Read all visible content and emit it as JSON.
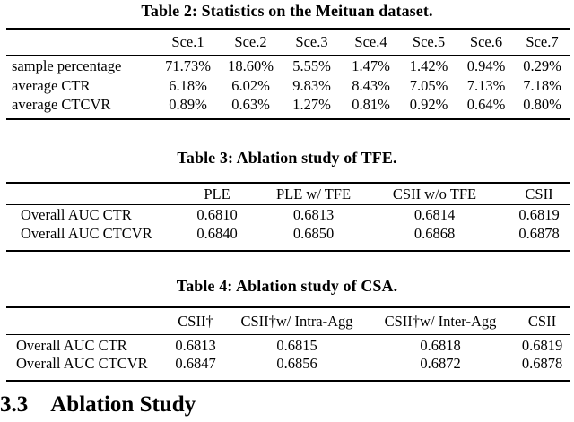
{
  "colors": {
    "text": "#000000",
    "background": "#ffffff",
    "rule": "#000000"
  },
  "section_heading": {
    "number": "3.3",
    "title": "Ablation Study"
  },
  "tables": [
    {
      "caption": "Table 2: Statistics on the Meituan dataset.",
      "columns": [
        "",
        "Sce.1",
        "Sce.2",
        "Sce.3",
        "Sce.4",
        "Sce.5",
        "Sce.6",
        "Sce.7"
      ],
      "rows": [
        {
          "label": "sample percentage",
          "values": [
            "71.73%",
            "18.60%",
            "5.55%",
            "1.47%",
            "1.42%",
            "0.94%",
            "0.29%"
          ]
        },
        {
          "label": "average CTR",
          "values": [
            "6.18%",
            "6.02%",
            "9.83%",
            "8.43%",
            "7.05%",
            "7.13%",
            "7.18%"
          ]
        },
        {
          "label": "average CTCVR",
          "values": [
            "0.89%",
            "0.63%",
            "1.27%",
            "0.81%",
            "0.92%",
            "0.64%",
            "0.80%"
          ]
        }
      ]
    },
    {
      "caption": "Table 3: Ablation study of TFE.",
      "columns": [
        "",
        "PLE",
        "PLE w/ TFE",
        "CSII w/o TFE",
        "CSII"
      ],
      "rows": [
        {
          "label": "Overall AUC CTR",
          "values": [
            "0.6810",
            "0.6813",
            "0.6814",
            "0.6819"
          ]
        },
        {
          "label": "Overall AUC CTCVR",
          "values": [
            "0.6840",
            "0.6850",
            "0.6868",
            "0.6878"
          ]
        }
      ]
    },
    {
      "caption": "Table 4: Ablation study of CSA.",
      "columns": [
        "",
        "CSII†",
        "CSII†w/ Intra-Agg",
        "CSII†w/ Inter-Agg",
        "CSII"
      ],
      "rows": [
        {
          "label": "Overall AUC CTR",
          "values": [
            "0.6813",
            "0.6815",
            "0.6818",
            "0.6819"
          ]
        },
        {
          "label": "Overall AUC CTCVR",
          "values": [
            "0.6847",
            "0.6856",
            "0.6872",
            "0.6878"
          ]
        }
      ]
    }
  ]
}
